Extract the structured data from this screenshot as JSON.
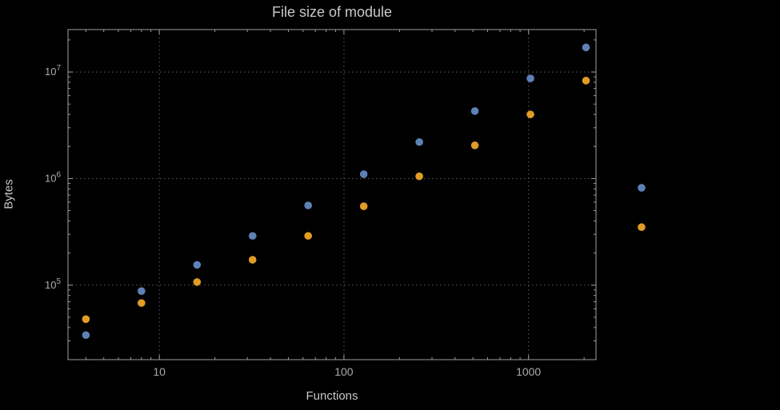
{
  "chart_data": {
    "type": "scatter",
    "title": "File size of module",
    "xlabel": "Functions",
    "ylabel": "Bytes",
    "x_scale": "log",
    "y_scale": "log",
    "xlim": [
      3.2,
      2320
    ],
    "ylim": [
      20000,
      25000000
    ],
    "grid": true,
    "legend": "none",
    "x": [
      4,
      8,
      16,
      32,
      64,
      128,
      256,
      512,
      1024,
      2048,
      4096
    ],
    "series": [
      {
        "name": "blue-series",
        "color": "#5e81b5",
        "values": [
          34000,
          88000,
          155000,
          290000,
          560000,
          1100000,
          2200000,
          4300000,
          8700000,
          17000000,
          820000
        ]
      },
      {
        "name": "orange-series",
        "color": "#e19c24",
        "values": [
          48000,
          68000,
          107000,
          173000,
          290000,
          550000,
          1050000,
          2050000,
          4000000,
          8300000,
          350000
        ]
      }
    ],
    "x_ticks": [
      {
        "value": 10,
        "label": "10"
      },
      {
        "value": 100,
        "label": "100"
      },
      {
        "value": 1000,
        "label": "1000"
      }
    ],
    "y_ticks": [
      {
        "value": 100000,
        "base": "10",
        "exp": "5"
      },
      {
        "value": 1000000,
        "base": "10",
        "exp": "6"
      },
      {
        "value": 10000000,
        "base": "10",
        "exp": "7"
      }
    ],
    "colors": {
      "background": "#000000",
      "frame": "#9e9e9e",
      "grid": "#5c5c5c",
      "text": "#c9c9c9",
      "tick_text": "#ababab"
    }
  }
}
